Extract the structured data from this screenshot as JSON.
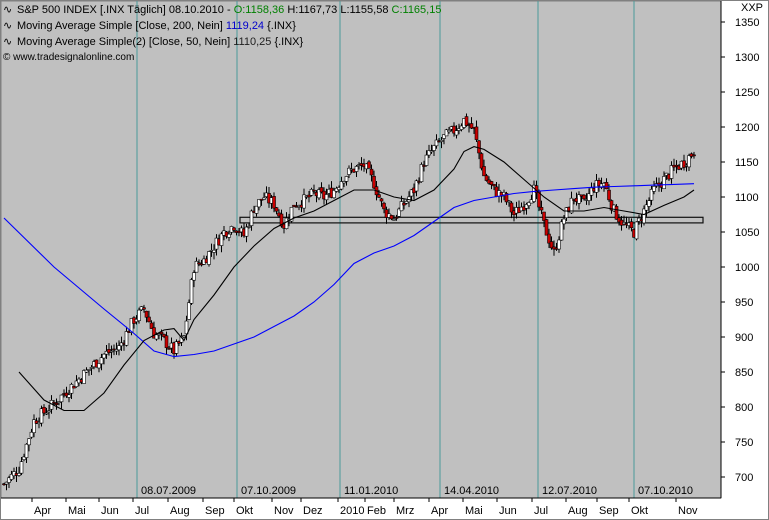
{
  "legend": {
    "symbol": "S&P 500 INDEX [.INX  Täglich]",
    "date": "08.10.2010",
    "open": "O:1158,36",
    "high": "H:1167,73",
    "low": "L:1155,58",
    "close": "C:1165,15",
    "ma200_label": "Moving Average Simple [Close, 200, Nein]",
    "ma200_value": "1119,24",
    "ma200_suffix": "{.INX}",
    "ma50_label": "Moving Average Simple(2) [Close, 50, Nein]",
    "ma50_value": "1110,25",
    "ma50_suffix": "{.INX}",
    "copyright": "© www.tradesignalonline.com",
    "indicator_icon": "trend-line-icon"
  },
  "symbol_short": "XXP",
  "colors": {
    "plot_bg": "#c0c0c0",
    "ma200": "#0000ff",
    "ma50": "#000000",
    "candle_up": "#ffffff",
    "candle_down": "#cc0000",
    "vline": "#4a9a9a",
    "support_line": "#101010"
  },
  "chart_data": {
    "type": "candlestick",
    "y_ticks": [
      700,
      750,
      800,
      850,
      900,
      950,
      1000,
      1050,
      1100,
      1150,
      1200,
      1250,
      1300,
      1350
    ],
    "ylim": [
      670,
      1380
    ],
    "month_labels": [
      "Apr",
      "Mai",
      "Jun",
      "Jul",
      "Aug",
      "Sep",
      "Okt",
      "Nov",
      "Dez",
      "2010",
      "Feb",
      "Mrz",
      "Apr",
      "Mai",
      "Jun",
      "Jul",
      "Aug",
      "Sep",
      "Okt",
      "Nov"
    ],
    "vline_labels": [
      "08.07.2009",
      "07.10.2009",
      "11.01.2010",
      "14.04.2010",
      "12.07.2010",
      "07.10.2010"
    ],
    "support_band": [
      1063,
      1071
    ],
    "price_path": [
      [
        0,
        690
      ],
      [
        3,
        712
      ],
      [
        6,
        780
      ],
      [
        10,
        805
      ],
      [
        15,
        840
      ],
      [
        20,
        875
      ],
      [
        23,
        885
      ],
      [
        26,
        925
      ],
      [
        28,
        940
      ],
      [
        30,
        905
      ],
      [
        32,
        895
      ],
      [
        34,
        880
      ],
      [
        36,
        900
      ],
      [
        38,
        1000
      ],
      [
        40,
        1010
      ],
      [
        42,
        1030
      ],
      [
        44,
        1050
      ],
      [
        46,
        1060
      ],
      [
        48,
        1045
      ],
      [
        50,
        1085
      ],
      [
        52,
        1100
      ],
      [
        54,
        1090
      ],
      [
        56,
        1060
      ],
      [
        58,
        1090
      ],
      [
        60,
        1095
      ],
      [
        62,
        1105
      ],
      [
        64,
        1100
      ],
      [
        66,
        1110
      ],
      [
        68,
        1130
      ],
      [
        70,
        1140
      ],
      [
        72,
        1145
      ],
      [
        74,
        1120
      ],
      [
        76,
        1080
      ],
      [
        78,
        1070
      ],
      [
        80,
        1090
      ],
      [
        82,
        1110
      ],
      [
        84,
        1150
      ],
      [
        86,
        1170
      ],
      [
        88,
        1185
      ],
      [
        90,
        1195
      ],
      [
        92,
        1210
      ],
      [
        94,
        1195
      ],
      [
        96,
        1130
      ],
      [
        98,
        1110
      ],
      [
        100,
        1100
      ],
      [
        102,
        1075
      ],
      [
        104,
        1090
      ],
      [
        106,
        1110
      ],
      [
        108,
        1060
      ],
      [
        110,
        1020
      ],
      [
        112,
        1070
      ],
      [
        114,
        1100
      ],
      [
        116,
        1090
      ],
      [
        118,
        1115
      ],
      [
        120,
        1120
      ],
      [
        122,
        1080
      ],
      [
        124,
        1060
      ],
      [
        126,
        1050
      ],
      [
        128,
        1080
      ],
      [
        130,
        1110
      ],
      [
        132,
        1125
      ],
      [
        134,
        1140
      ],
      [
        136,
        1150
      ],
      [
        138,
        1165
      ]
    ],
    "ma200_path": [
      [
        0,
        1070
      ],
      [
        10,
        1000
      ],
      [
        20,
        940
      ],
      [
        26,
        905
      ],
      [
        30,
        880
      ],
      [
        34,
        872
      ],
      [
        38,
        875
      ],
      [
        42,
        880
      ],
      [
        46,
        890
      ],
      [
        50,
        900
      ],
      [
        54,
        915
      ],
      [
        58,
        930
      ],
      [
        62,
        950
      ],
      [
        66,
        975
      ],
      [
        70,
        1005
      ],
      [
        74,
        1020
      ],
      [
        78,
        1030
      ],
      [
        82,
        1045
      ],
      [
        86,
        1065
      ],
      [
        90,
        1085
      ],
      [
        94,
        1095
      ],
      [
        98,
        1100
      ],
      [
        102,
        1105
      ],
      [
        106,
        1108
      ],
      [
        110,
        1110
      ],
      [
        114,
        1112
      ],
      [
        118,
        1114
      ],
      [
        122,
        1115
      ],
      [
        126,
        1116
      ],
      [
        130,
        1117
      ],
      [
        134,
        1118
      ],
      [
        138,
        1119
      ]
    ],
    "ma50_path": [
      [
        3,
        850
      ],
      [
        8,
        810
      ],
      [
        12,
        795
      ],
      [
        16,
        795
      ],
      [
        20,
        820
      ],
      [
        24,
        860
      ],
      [
        28,
        895
      ],
      [
        32,
        910
      ],
      [
        34,
        912
      ],
      [
        36,
        895
      ],
      [
        38,
        925
      ],
      [
        42,
        960
      ],
      [
        46,
        1000
      ],
      [
        50,
        1030
      ],
      [
        54,
        1055
      ],
      [
        58,
        1070
      ],
      [
        62,
        1080
      ],
      [
        66,
        1095
      ],
      [
        70,
        1110
      ],
      [
        74,
        1110
      ],
      [
        78,
        1100
      ],
      [
        82,
        1095
      ],
      [
        86,
        1110
      ],
      [
        90,
        1140
      ],
      [
        92,
        1165
      ],
      [
        94,
        1172
      ],
      [
        96,
        1168
      ],
      [
        100,
        1150
      ],
      [
        104,
        1125
      ],
      [
        108,
        1100
      ],
      [
        112,
        1080
      ],
      [
        116,
        1080
      ],
      [
        120,
        1085
      ],
      [
        124,
        1080
      ],
      [
        128,
        1075
      ],
      [
        132,
        1088
      ],
      [
        136,
        1100
      ],
      [
        138,
        1110
      ]
    ]
  }
}
